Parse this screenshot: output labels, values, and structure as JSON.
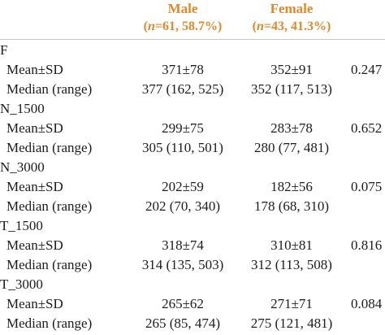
{
  "header": {
    "male": {
      "title": "Male",
      "n_label": "n",
      "n_rest": "=61, 58.7%)",
      "open": "("
    },
    "female": {
      "title": "Female",
      "n_label": "n",
      "n_rest": "=43, 41.3%)",
      "open": "("
    }
  },
  "groups": [
    {
      "name": "F",
      "rows": [
        {
          "label": "Mean±SD",
          "male": "371±78",
          "female": "352±91",
          "p": "0.247"
        },
        {
          "label": "Median (range)",
          "male": "377 (162, 525)",
          "female": "352 (117, 513)",
          "p": ""
        }
      ]
    },
    {
      "name": "N_1500",
      "rows": [
        {
          "label": "Mean±SD",
          "male": "299±75",
          "female": "283±78",
          "p": "0.652"
        },
        {
          "label": "Median (range)",
          "male": "305 (110, 501)",
          "female": "280 (77, 481)",
          "p": ""
        }
      ]
    },
    {
      "name": "N_3000",
      "rows": [
        {
          "label": "Mean±SD",
          "male": "202±59",
          "female": "182±56",
          "p": "0.075"
        },
        {
          "label": "Median (range)",
          "male": "202 (70, 340)",
          "female": "178 (68, 310)",
          "p": ""
        }
      ]
    },
    {
      "name": "T_1500",
      "rows": [
        {
          "label": "Mean±SD",
          "male": "318±74",
          "female": "310±81",
          "p": "0.816"
        },
        {
          "label": "Median (range)",
          "male": "314 (135, 503)",
          "female": "312 (113, 508)",
          "p": ""
        }
      ]
    },
    {
      "name": "T_3000",
      "rows": [
        {
          "label": "Mean±SD",
          "male": "265±62",
          "female": "271±71",
          "p": "0.084"
        },
        {
          "label": "Median (range)",
          "male": "265 (85, 474)",
          "female": "275 (121, 481)",
          "p": ""
        }
      ]
    }
  ]
}
